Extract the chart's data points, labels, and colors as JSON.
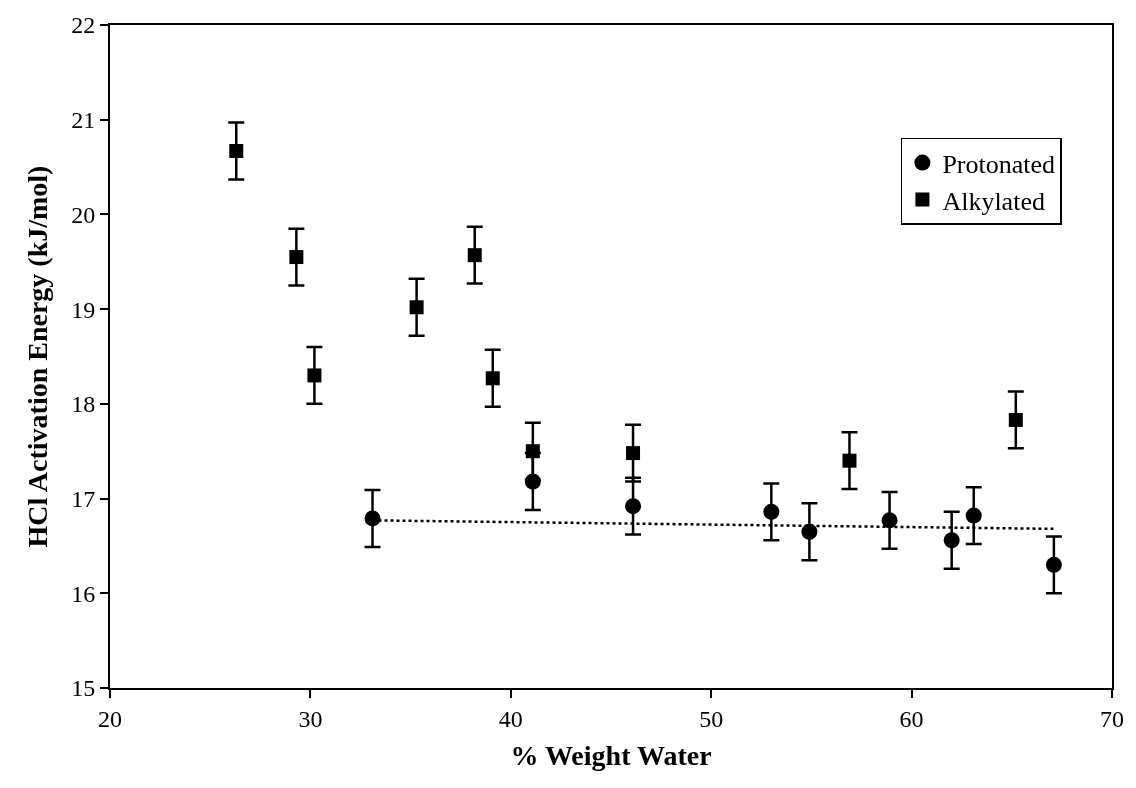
{
  "chart_data": {
    "type": "scatter",
    "xlabel": "% Weight Water",
    "ylabel": "HCl Activation Energy (kJ/mol)",
    "xlim": [
      20,
      70
    ],
    "xticks": [
      20,
      30,
      40,
      50,
      60,
      70
    ],
    "ylim": [
      15,
      22
    ],
    "yticks": [
      15,
      16,
      17,
      18,
      19,
      20,
      21,
      22
    ],
    "grid": false,
    "legend": "top right",
    "series": [
      {
        "name": "Protonated",
        "color": "#000000",
        "marker": "circle",
        "x": [
          33.1,
          41.1,
          46.1,
          53.0,
          54.9,
          58.9,
          62.0,
          63.1,
          67.1
        ],
        "values": [
          16.79,
          17.18,
          16.92,
          16.86,
          16.65,
          16.77,
          16.56,
          16.82,
          16.3
        ],
        "errors": [
          0.3,
          0.3,
          0.3,
          0.3,
          0.3,
          0.3,
          0.3,
          0.3,
          0.3
        ]
      },
      {
        "name": "Alkylated",
        "color": "#000000",
        "marker": "square",
        "x": [
          26.3,
          29.3,
          30.2,
          35.3,
          38.2,
          39.1,
          41.1,
          46.1,
          56.9,
          65.2
        ],
        "values": [
          20.67,
          19.55,
          18.3,
          19.02,
          19.57,
          18.27,
          17.5,
          17.48,
          17.4,
          17.83
        ],
        "errors": [
          0.3,
          0.3,
          0.3,
          0.3,
          0.3,
          0.3,
          0.3,
          0.3,
          0.3,
          0.3
        ]
      },
      {
        "type": "line",
        "color": "#000000",
        "line_style": "dotted",
        "marker": "none",
        "x": [
          33.1,
          67.1
        ],
        "values": [
          16.77,
          16.68
        ]
      }
    ]
  }
}
